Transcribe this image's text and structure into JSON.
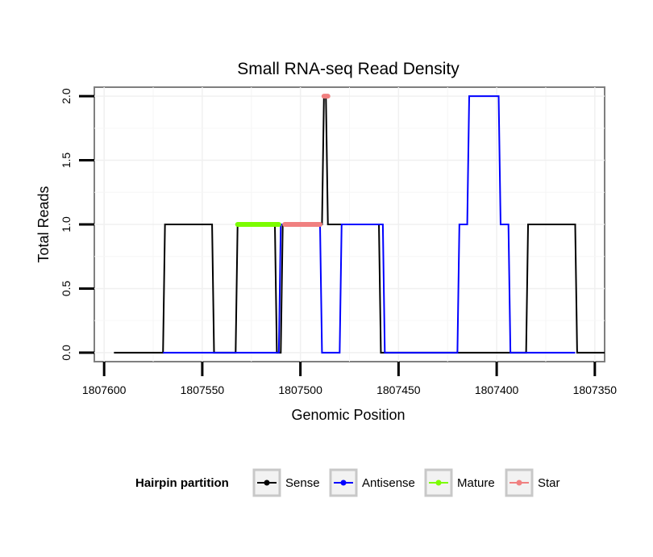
{
  "chart_data": {
    "type": "line",
    "title": "Small RNA-seq Read Density",
    "xlabel": "Genomic Position",
    "ylabel": "Total Reads",
    "x_reversed": true,
    "xlim": [
      1807605,
      1807345
    ],
    "ylim": [
      -0.07,
      2.07
    ],
    "x_ticks": [
      1807600,
      1807550,
      1807500,
      1807450,
      1807400,
      1807350
    ],
    "x_tick_labels": [
      "1807600",
      "1807550",
      "1807500",
      "1807450",
      "1807400",
      "1807350"
    ],
    "y_ticks": [
      0,
      0.5,
      1,
      1.5,
      2
    ],
    "y_tick_labels": [
      "0.0",
      "0.5",
      "1.0",
      "1.5",
      "2.0"
    ],
    "grid": true,
    "legend": {
      "title": "Hairpin partition",
      "position": "bottom",
      "entries": [
        {
          "name": "Sense",
          "color": "#000000"
        },
        {
          "name": "Antisense",
          "color": "#0000ff"
        },
        {
          "name": "Mature",
          "color": "#7cfc00"
        },
        {
          "name": "Star",
          "color": "#f08080"
        }
      ]
    },
    "series": [
      {
        "name": "Sense",
        "color": "#000000",
        "x": [
          1807595,
          1807570,
          1807569,
          1807545,
          1807544,
          1807533,
          1807532,
          1807513,
          1807512,
          1807510,
          1807509,
          1807489,
          1807488,
          1807487,
          1807486,
          1807484,
          1807483,
          1807470,
          1807469,
          1807460,
          1807459,
          1807420,
          1807419,
          1807395,
          1807394,
          1807385,
          1807384,
          1807360,
          1807359,
          1807345
        ],
        "y": [
          0,
          0,
          1,
          1,
          0,
          0,
          1,
          1,
          0,
          0,
          1,
          1,
          2,
          2,
          1,
          1,
          1,
          1,
          1,
          1,
          0,
          0,
          0,
          0,
          0,
          0,
          1,
          1,
          0,
          0
        ]
      },
      {
        "name": "Antisense",
        "color": "#0000ff",
        "x": [
          1807570,
          1807511,
          1807510,
          1807490,
          1807489,
          1807480,
          1807479,
          1807462,
          1807461,
          1807458,
          1807457,
          1807420,
          1807419,
          1807415,
          1807414,
          1807399,
          1807398,
          1807394,
          1807393,
          1807360
        ],
        "y": [
          0,
          0,
          1,
          1,
          0,
          0,
          1,
          1,
          1,
          1,
          0,
          0,
          1,
          1,
          2,
          2,
          1,
          1,
          0,
          0
        ]
      },
      {
        "name": "Mature",
        "color": "#7cfc00",
        "x": [
          1807532,
          1807511
        ],
        "y": [
          1,
          1
        ]
      },
      {
        "name": "Star",
        "color": "#f08080",
        "x": [
          1807508,
          1807490
        ],
        "y": [
          1,
          1
        ]
      },
      {
        "name": "Star",
        "color": "#f08080",
        "x": [
          1807488,
          1807486
        ],
        "y": [
          2,
          2
        ]
      }
    ]
  }
}
